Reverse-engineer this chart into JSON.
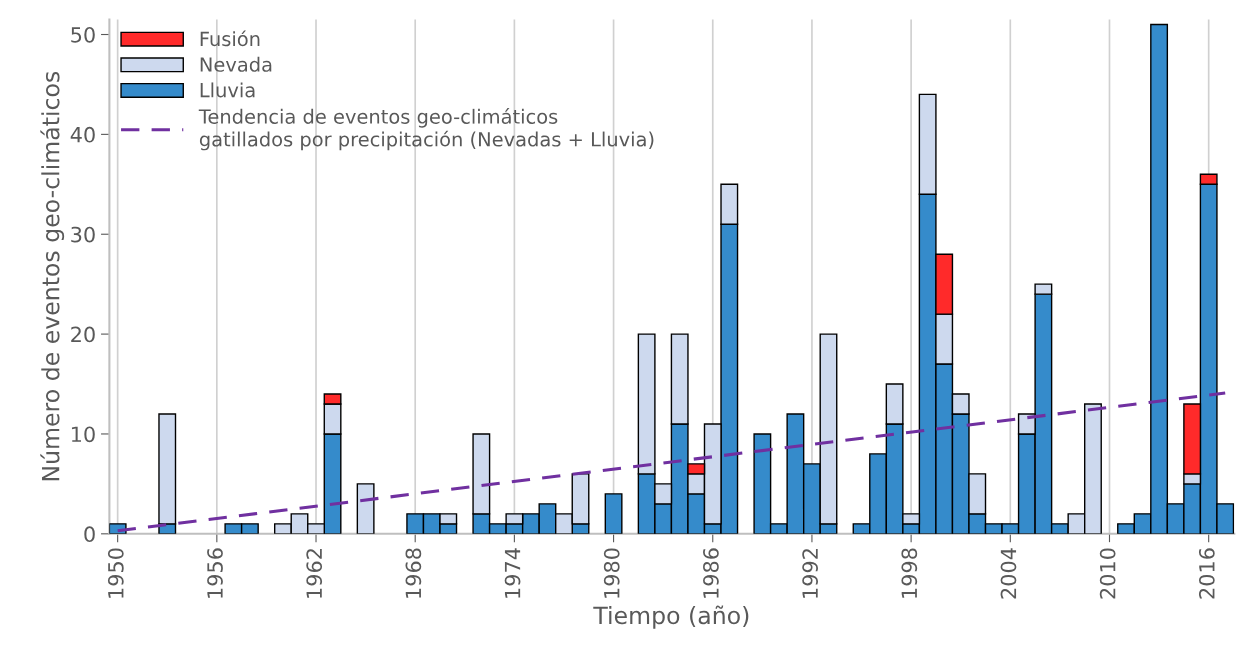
{
  "chart_data": {
    "type": "bar",
    "stacked": true,
    "xlabel": "Tiempo (año)",
    "ylabel": "Número de eventos geo-climáticos",
    "x": [
      1950,
      1951,
      1952,
      1953,
      1954,
      1955,
      1956,
      1957,
      1958,
      1959,
      1960,
      1961,
      1962,
      1963,
      1964,
      1965,
      1966,
      1967,
      1968,
      1969,
      1970,
      1971,
      1972,
      1973,
      1974,
      1975,
      1976,
      1977,
      1978,
      1979,
      1980,
      1981,
      1982,
      1983,
      1984,
      1985,
      1986,
      1987,
      1988,
      1989,
      1990,
      1991,
      1992,
      1993,
      1994,
      1995,
      1996,
      1997,
      1998,
      1999,
      2000,
      2001,
      2002,
      2003,
      2004,
      2005,
      2006,
      2007,
      2008,
      2009,
      2010,
      2011,
      2012,
      2013,
      2014,
      2015,
      2016,
      2017
    ],
    "series": [
      {
        "name": "Lluvia",
        "color": "#358bcb",
        "values": [
          1,
          null,
          null,
          1,
          null,
          null,
          null,
          1,
          1,
          null,
          null,
          null,
          null,
          10,
          null,
          null,
          null,
          null,
          2,
          2,
          1,
          null,
          2,
          1,
          1,
          2,
          3,
          null,
          1,
          null,
          4,
          null,
          6,
          3,
          11,
          4,
          1,
          31,
          null,
          10,
          1,
          12,
          7,
          1,
          null,
          1,
          8,
          11,
          1,
          34,
          17,
          12,
          2,
          1,
          1,
          10,
          24,
          1,
          null,
          null,
          null,
          1,
          2,
          51,
          3,
          5,
          35,
          3
        ]
      },
      {
        "name": "Nevada",
        "color": "#cdd9ee",
        "values": [
          null,
          null,
          null,
          11,
          null,
          null,
          null,
          null,
          null,
          null,
          1,
          2,
          1,
          3,
          null,
          5,
          null,
          null,
          null,
          null,
          1,
          null,
          8,
          null,
          1,
          null,
          null,
          2,
          5,
          null,
          null,
          null,
          14,
          2,
          9,
          2,
          10,
          4,
          null,
          null,
          null,
          null,
          null,
          19,
          null,
          null,
          null,
          4,
          1,
          10,
          5,
          2,
          4,
          null,
          null,
          2,
          1,
          null,
          2,
          13,
          null,
          null,
          null,
          null,
          null,
          1,
          null,
          null
        ]
      },
      {
        "name": "Fusión",
        "color": "#ff2a2a",
        "values": [
          null,
          null,
          null,
          null,
          null,
          null,
          null,
          null,
          null,
          null,
          null,
          null,
          null,
          1,
          null,
          null,
          null,
          null,
          null,
          null,
          null,
          null,
          null,
          null,
          null,
          null,
          null,
          null,
          null,
          null,
          null,
          null,
          null,
          null,
          null,
          1,
          null,
          null,
          null,
          null,
          null,
          null,
          null,
          null,
          null,
          null,
          null,
          null,
          null,
          null,
          6,
          null,
          null,
          null,
          null,
          null,
          null,
          null,
          null,
          null,
          null,
          null,
          null,
          null,
          null,
          7,
          1,
          null
        ]
      },
      {
        "name": "Tendencia de eventos geo-climáticos\ngatillados por precipitación (Nevadas + Lluvia)",
        "type": "line",
        "color": "#7030a0",
        "line_style": "dashed",
        "x": [
          1950,
          2017
        ],
        "values": [
          0.3,
          14.1
        ]
      }
    ],
    "xlim": [
      1949.5,
      2017.55
    ],
    "xticks": [
      1950,
      1956,
      1962,
      1968,
      1974,
      1980,
      1986,
      1992,
      1998,
      2004,
      2010,
      2016
    ],
    "ylim": [
      0,
      51.5
    ],
    "yticks": [
      0,
      10,
      20,
      30,
      40,
      50
    ],
    "grid": "x",
    "legend": "top left"
  }
}
